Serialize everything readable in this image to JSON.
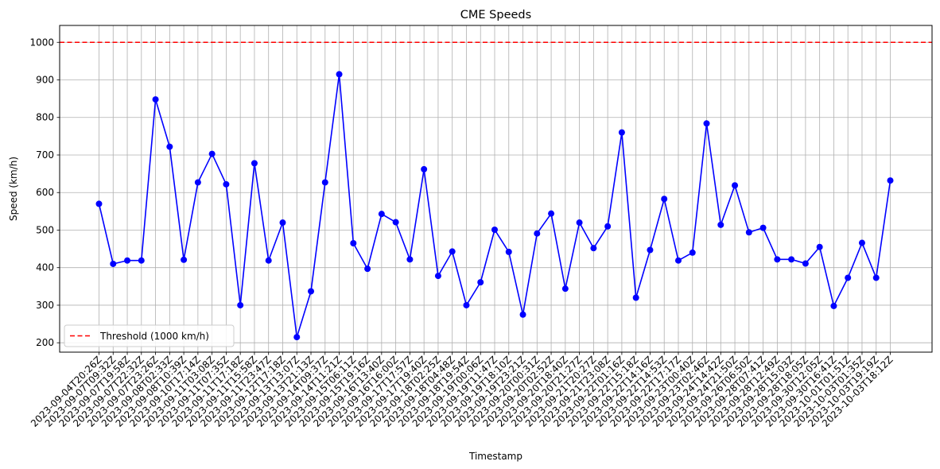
{
  "chart_data": {
    "type": "line",
    "title": "CME Speeds",
    "xlabel": "Timestamp",
    "ylabel": "Speed (km/h)",
    "ylim": [
      175,
      1045
    ],
    "yticks": [
      200,
      300,
      400,
      500,
      600,
      700,
      800,
      900,
      1000
    ],
    "grid": true,
    "legend_position": "lower-left",
    "series_color": "#0000ff",
    "x": [
      "2023-09-04T20:26Z",
      "2023-09-07T09:32Z",
      "2023-09-07T19:58Z",
      "2023-09-07T22:32Z",
      "2023-09-07T23:26Z",
      "2023-09-08T02:33Z",
      "2023-09-08T10:39Z",
      "2023-09-10T17:14Z",
      "2023-09-11T03:08Z",
      "2023-09-11T07:35Z",
      "2023-09-11T17:18Z",
      "2023-09-11T15:58Z",
      "2023-09-11T23:47Z",
      "2023-09-12T17:18Z",
      "2023-09-13T13:07Z",
      "2023-09-13T21:13Z",
      "2023-09-14T09:37Z",
      "2023-09-14T11:21Z",
      "2023-09-15T06:11Z",
      "2023-09-15T19:16Z",
      "2023-09-16T13:40Z",
      "2023-09-16T16:00Z",
      "2023-09-17T17:57Z",
      "2023-09-17T19:40Z",
      "2023-09-18T02:25Z",
      "2023-09-18T04:48Z",
      "2023-09-18T19:54Z",
      "2023-09-19T00:06Z",
      "2023-09-19T11:47Z",
      "2023-09-19T18:10Z",
      "2023-09-19T23:21Z",
      "2023-09-20T00:31Z",
      "2023-09-20T02:52Z",
      "2023-09-20T18:40Z",
      "2023-09-20T21:27Z",
      "2023-09-21T20:27Z",
      "2023-09-21T23:08Z",
      "2023-09-22T01:16Z",
      "2023-09-22T15:18Z",
      "2023-09-22T14:16Z",
      "2023-09-22T14:53Z",
      "2023-09-22T17:17Z",
      "2023-09-23T00:40Z",
      "2023-09-23T02:46Z",
      "2023-09-24T14:42Z",
      "2023-09-24T21:50Z",
      "2023-09-26T06:50Z",
      "2023-09-28T07:41Z",
      "2023-09-28T12:49Z",
      "2023-09-28T15:03Z",
      "2023-09-28T18:05Z",
      "2023-09-30T12:05Z",
      "2023-09-30T16:41Z",
      "2023-10-01T01:51Z",
      "2023-10-03T01:35Z",
      "2023-10-03T19:19Z",
      "2023-10-03T18:12Z"
    ],
    "series": [
      {
        "values": [
          570,
          410,
          419,
          419,
          848,
          722,
          421,
          627,
          703,
          622,
          300,
          678,
          419,
          520,
          215,
          337,
          627,
          915,
          465,
          397,
          543,
          521,
          422,
          662,
          378,
          443,
          300,
          361,
          501,
          442,
          275,
          491,
          544,
          344,
          520,
          452,
          510,
          760,
          320,
          447,
          583,
          419,
          440,
          784,
          514,
          619,
          494,
          506,
          422,
          422,
          411,
          455,
          298,
          373,
          466,
          373,
          632
        ]
      }
    ],
    "threshold": {
      "value": 1000,
      "label": "Threshold (1000 km/h)",
      "color": "#ff0000"
    }
  }
}
